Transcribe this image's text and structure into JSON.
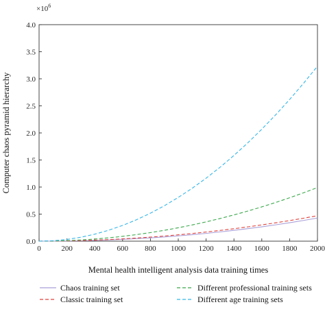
{
  "chart_data": {
    "type": "line",
    "xlabel": "Mental health intelligent analysis data training times",
    "ylabel": "Computer chaos pyramid hierarchy",
    "y_multiplier_base": "×10",
    "y_multiplier_exp": "6",
    "xlim": [
      0,
      2000
    ],
    "ylim": [
      0,
      4.0
    ],
    "x_ticks": [
      0,
      200,
      400,
      600,
      800,
      1000,
      1200,
      1400,
      1600,
      1800,
      2000
    ],
    "y_ticks": [
      0.0,
      0.5,
      1.0,
      1.5,
      2.0,
      2.5,
      3.0,
      3.5,
      4.0
    ],
    "x_tick_labels": [
      "0",
      "200",
      "400",
      "600",
      "800",
      "1000",
      "1200",
      "1400",
      "1600",
      "1800",
      "2000"
    ],
    "y_tick_labels": [
      "0.0",
      "0.5",
      "1.0",
      "1.5",
      "2.0",
      "2.5",
      "3.0",
      "3.5",
      "4.0"
    ],
    "grid": false,
    "legend_position": "bottom",
    "x": [
      0,
      100,
      200,
      300,
      400,
      500,
      600,
      700,
      800,
      900,
      1000,
      1100,
      1200,
      1300,
      1400,
      1500,
      1600,
      1700,
      1800,
      1900,
      2000
    ],
    "series": [
      {
        "name": "Chaos training set",
        "color": "#a99fd8",
        "dash": "solid",
        "values": [
          0,
          0.0008,
          0.0034,
          0.0079,
          0.0144,
          0.0229,
          0.0335,
          0.0463,
          0.0613,
          0.0785,
          0.098,
          0.1199,
          0.1441,
          0.1707,
          0.1998,
          0.2313,
          0.2654,
          0.302,
          0.3411,
          0.3829,
          0.4273
        ]
      },
      {
        "name": "Classic training set",
        "color": "#e0413c",
        "dash": "dashed",
        "values": [
          0,
          0.0012,
          0.0047,
          0.0106,
          0.0188,
          0.0294,
          0.0423,
          0.0576,
          0.0752,
          0.0952,
          0.1175,
          0.1422,
          0.1692,
          0.1986,
          0.2303,
          0.2644,
          0.3008,
          0.3396,
          0.3807,
          0.4242,
          0.47
        ]
      },
      {
        "name": "Different professional training sets",
        "color": "#3aa84a",
        "dash": "dashed",
        "values": [
          0,
          0.0025,
          0.0099,
          0.0223,
          0.0396,
          0.0619,
          0.0891,
          0.1213,
          0.1584,
          0.2005,
          0.2475,
          0.2995,
          0.3564,
          0.4183,
          0.4851,
          0.5569,
          0.6336,
          0.7153,
          0.8019,
          0.8935,
          0.99
        ]
      },
      {
        "name": "Different age training sets",
        "color": "#35b6e8",
        "dash": "dashed",
        "values": [
          0,
          0.0081,
          0.0323,
          0.0727,
          0.1293,
          0.202,
          0.2909,
          0.3959,
          0.5171,
          0.6545,
          0.808,
          0.9777,
          1.1635,
          1.3655,
          1.5837,
          1.818,
          2.0685,
          2.3351,
          2.6179,
          2.9169,
          3.232
        ]
      }
    ]
  }
}
